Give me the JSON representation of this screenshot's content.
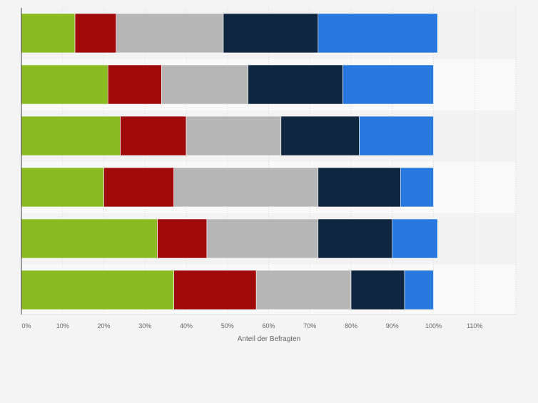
{
  "chart_data": {
    "type": "bar",
    "orientation": "horizontal",
    "stacked": true,
    "title": "",
    "xlabel": "Anteil der Befragten",
    "ylabel": "",
    "xlim": [
      0,
      120
    ],
    "x_ticks": [
      "0%",
      "10%",
      "20%",
      "30%",
      "40%",
      "50%",
      "60%",
      "70%",
      "80%",
      "90%",
      "100%",
      "110%"
    ],
    "grid": true,
    "legend": "none",
    "categories": [
      "",
      "",
      "",
      "",
      "",
      ""
    ],
    "series": [
      {
        "color": "#8aba24",
        "values": [
          13,
          21,
          24,
          20,
          33,
          37
        ]
      },
      {
        "color": "#a10a0a",
        "values": [
          10,
          13,
          16,
          17,
          12,
          20
        ]
      },
      {
        "color": "#b6b6b6",
        "values": [
          26,
          21,
          23,
          35,
          27,
          23
        ]
      },
      {
        "color": "#0f2640",
        "values": [
          23,
          23,
          19,
          20,
          18,
          13
        ]
      },
      {
        "color": "#2878df",
        "values": [
          29,
          22,
          18,
          8,
          11,
          7
        ]
      }
    ],
    "colors": {
      "band_light": "#f9f9f9",
      "band_dark": "#f3f3f3",
      "grid": "#d9d9d9",
      "axis": "#444444",
      "tick_text": "#666666"
    }
  }
}
